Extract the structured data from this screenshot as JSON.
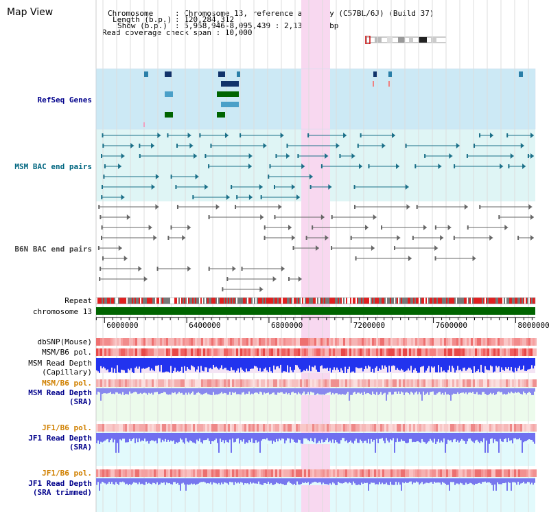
{
  "app": {
    "title": "Map View"
  },
  "info": {
    "chromosome_key": "Chromosome",
    "chromosome_val": ": Chromosome 13, reference assembly (C57BL/6J) (Build 37)",
    "length_key": "Length (b.p.)",
    "length_val": ": 120,284,312",
    "show_key": "Show (b.p.)",
    "show_val": ": 5,958,946-8,095,439 : 2,136,494 bp",
    "coverage": "Read coverage check span : 10,000"
  },
  "tracks": {
    "refseq": "RefSeq Genes",
    "msm_bac": "MSM BAC end pairs",
    "b6n_bac": "B6N BAC end pairs",
    "repeat": "Repeat",
    "chromosome": "chromosome 13",
    "dbsnp": "dbSNP(Mouse)",
    "msm_b6_pol_1": "MSM/B6 pol.",
    "msm_read_depth_cap_1": "MSM Read Depth",
    "msm_read_depth_cap_2": "(Capillary)",
    "msm_b6_pol_2": "MSM/B6 pol.",
    "msm_read_depth_sra_1": "MSM Read Depth",
    "msm_read_depth_sra_2": "(SRA)",
    "jf1_b6_pol_1": "JF1/B6 pol.",
    "jf1_read_depth_sra_1": "JF1 Read Depth",
    "jf1_read_depth_sra_2": "(SRA)",
    "jf1_b6_pol_2": "JF1/B6 pol.",
    "jf1_read_depth_trim_1": "JF1 Read Depth",
    "jf1_read_depth_trim_2": "(SRA trimmed)"
  },
  "axis": {
    "ticks": [
      {
        "value": 6000000,
        "label": "6000000"
      },
      {
        "value": 6400000,
        "label": "6400000"
      },
      {
        "value": 6800000,
        "label": "6800000"
      },
      {
        "value": 7200000,
        "label": "7200000"
      },
      {
        "value": 7600000,
        "label": "7600000"
      },
      {
        "value": 8000000,
        "label": "8000000"
      }
    ]
  },
  "colors": {
    "label_blue": "#00008b",
    "label_teal": "#006680",
    "label_gray": "#444444",
    "label_orange": "#d08000",
    "refseq_bg": "#cce9f5",
    "bac_bg": "#dff5f5",
    "highlight": "#f8d8f0",
    "chromosome_bar": "#006400"
  }
}
